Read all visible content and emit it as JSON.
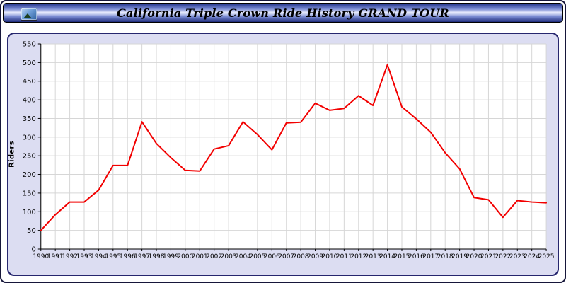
{
  "window": {
    "title": "California Triple Crown Ride History GRAND TOUR"
  },
  "colors": {
    "line": "#f20000",
    "panel_bg": "#dcddf2",
    "plot_bg": "#ffffff",
    "grid": "#d6d6d6",
    "axis": "#000000",
    "titlebar_dark": "#1d2b7a",
    "titlebar_light": "#eef1ff"
  },
  "chart_data": {
    "type": "line",
    "title": "California Triple Crown Ride History GRAND TOUR",
    "xlabel": "",
    "ylabel": "Riders",
    "ylim": [
      0,
      550
    ],
    "ytick_step": 50,
    "grid": true,
    "legend_position": "none",
    "x": [
      1990,
      1991,
      1992,
      1993,
      1994,
      1995,
      1996,
      1997,
      1998,
      1999,
      2000,
      2001,
      2002,
      2003,
      2004,
      2005,
      2006,
      2007,
      2008,
      2009,
      2010,
      2011,
      2012,
      2013,
      2014,
      2015,
      2016,
      2017,
      2018,
      2019,
      2020,
      2021,
      2022,
      2023,
      2024,
      2025
    ],
    "series": [
      {
        "name": "Riders",
        "color": "#f20000",
        "values": [
          50,
          92,
          126,
          126,
          158,
          224,
          224,
          341,
          283,
          245,
          211,
          209,
          268,
          277,
          341,
          307,
          266,
          338,
          340,
          391,
          372,
          377,
          411,
          385,
          494,
          381,
          349,
          313,
          258,
          215,
          138,
          132,
          85,
          130,
          126,
          124
        ]
      }
    ]
  }
}
